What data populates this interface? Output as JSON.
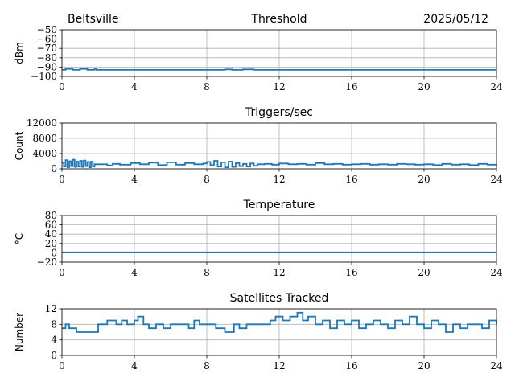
{
  "header": {
    "location": "Beltsville",
    "date": "2025/05/12"
  },
  "colors": {
    "series": "#1f77b4",
    "grid": "#b0b0b0",
    "axis": "#000000"
  },
  "chart_data": [
    {
      "type": "line",
      "title": "Threshold",
      "ylabel": "dBm",
      "xlim": [
        0,
        24
      ],
      "ylim": [
        -100,
        -50
      ],
      "xticks": [
        "0",
        "4",
        "8",
        "12",
        "16",
        "20",
        "24"
      ],
      "yticks": [
        "−50",
        "−60",
        "−70",
        "−80",
        "−90",
        "−100"
      ],
      "grid": true,
      "series": [
        {
          "x": [
            0,
            0.2,
            0.6,
            1.0,
            1.4,
            1.8,
            1.9,
            4,
            8,
            9.0,
            9.4,
            10.0,
            10.6,
            11,
            12,
            16,
            20,
            24
          ],
          "y": [
            -93,
            -92,
            -93,
            -92,
            -93,
            -92,
            -93,
            -93,
            -93,
            -92.5,
            -93,
            -92.5,
            -93,
            -93,
            -93,
            -93,
            -93,
            -93
          ]
        }
      ]
    },
    {
      "type": "line",
      "title": "Triggers/sec",
      "ylabel": "Count",
      "xlim": [
        0,
        24
      ],
      "ylim": [
        0,
        12000
      ],
      "xticks": [
        "0",
        "4",
        "8",
        "12",
        "16",
        "20",
        "24"
      ],
      "yticks": [
        "0",
        "4000",
        "8000",
        "12000"
      ],
      "grid": true,
      "series": [
        {
          "x": [
            0,
            0.1,
            0.2,
            0.3,
            0.4,
            0.5,
            0.6,
            0.7,
            0.8,
            0.9,
            1.0,
            1.1,
            1.2,
            1.3,
            1.4,
            1.5,
            1.6,
            1.7,
            1.8,
            2.5,
            2.8,
            3.2,
            3.8,
            4.3,
            4.8,
            5.3,
            5.8,
            6.3,
            6.8,
            7.3,
            7.8,
            8.0,
            8.2,
            8.4,
            8.6,
            8.8,
            9.0,
            9.2,
            9.4,
            9.6,
            9.8,
            10.0,
            10.2,
            10.4,
            10.6,
            10.8,
            11.2,
            11.6,
            12.0,
            12.5,
            13.0,
            13.5,
            14.0,
            14.5,
            15.0,
            15.5,
            16.0,
            16.5,
            17.0,
            17.5,
            18.0,
            18.5,
            19.0,
            19.5,
            20.0,
            20.5,
            21.0,
            21.5,
            22.0,
            22.5,
            23.0,
            23.5,
            24.0
          ],
          "y": [
            1600,
            600,
            2300,
            400,
            2000,
            700,
            2400,
            500,
            1900,
            600,
            2100,
            500,
            2200,
            700,
            1800,
            400,
            1900,
            600,
            1200,
            900,
            1300,
            1100,
            1500,
            1200,
            1600,
            1000,
            1700,
            1100,
            1500,
            1200,
            1400,
            1800,
            1000,
            2100,
            600,
            1700,
            400,
            1900,
            500,
            1500,
            700,
            1300,
            600,
            1400,
            800,
            1200,
            1300,
            1100,
            1400,
            1200,
            1300,
            1100,
            1500,
            1200,
            1300,
            1100,
            1200,
            1300,
            1100,
            1200,
            1100,
            1300,
            1200,
            1100,
            1200,
            1000,
            1300,
            1100,
            1200,
            1000,
            1300,
            1100,
            1200
          ]
        }
      ]
    },
    {
      "type": "line",
      "title": "Temperature",
      "ylabel": "°C",
      "xlim": [
        0,
        24
      ],
      "ylim": [
        -20,
        80
      ],
      "xticks": [
        "0",
        "4",
        "8",
        "12",
        "16",
        "20",
        "24"
      ],
      "yticks": [
        "−20",
        "0",
        "20",
        "40",
        "60",
        "80"
      ],
      "grid": true,
      "series": [
        {
          "x": [
            0,
            24
          ],
          "y": [
            1,
            1
          ]
        }
      ]
    },
    {
      "type": "line",
      "title": "Satellites Tracked",
      "ylabel": "Number",
      "xlim": [
        0,
        24
      ],
      "ylim": [
        0,
        12
      ],
      "xticks": [
        "0",
        "4",
        "8",
        "12",
        "16",
        "20",
        "24"
      ],
      "yticks": [
        "0",
        "4",
        "8",
        "12"
      ],
      "grid": true,
      "series": [
        {
          "x": [
            0,
            0.2,
            0.4,
            0.8,
            1.4,
            2.0,
            2.5,
            3.0,
            3.3,
            3.6,
            4.0,
            4.2,
            4.5,
            4.8,
            5.2,
            5.6,
            6.0,
            6.5,
            7.0,
            7.3,
            7.6,
            8.0,
            8.5,
            9.0,
            9.5,
            9.8,
            10.2,
            10.6,
            11.0,
            11.5,
            11.8,
            12.2,
            12.6,
            13.0,
            13.3,
            13.6,
            14.0,
            14.4,
            14.8,
            15.2,
            15.6,
            16.0,
            16.4,
            16.8,
            17.2,
            17.6,
            18.0,
            18.4,
            18.8,
            19.2,
            19.6,
            20.0,
            20.4,
            20.8,
            21.2,
            21.6,
            22.0,
            22.4,
            22.8,
            23.2,
            23.6,
            24.0
          ],
          "y": [
            7,
            8,
            7,
            6,
            6,
            8,
            9,
            8,
            9,
            8,
            9,
            10,
            8,
            7,
            8,
            7,
            8,
            8,
            7,
            9,
            8,
            8,
            7,
            6,
            8,
            7,
            8,
            8,
            8,
            9,
            10,
            9,
            10,
            11,
            9,
            10,
            8,
            9,
            7,
            9,
            8,
            9,
            7,
            8,
            9,
            8,
            7,
            9,
            8,
            10,
            8,
            7,
            9,
            8,
            6,
            8,
            7,
            8,
            8,
            7,
            9,
            8
          ]
        }
      ]
    }
  ]
}
